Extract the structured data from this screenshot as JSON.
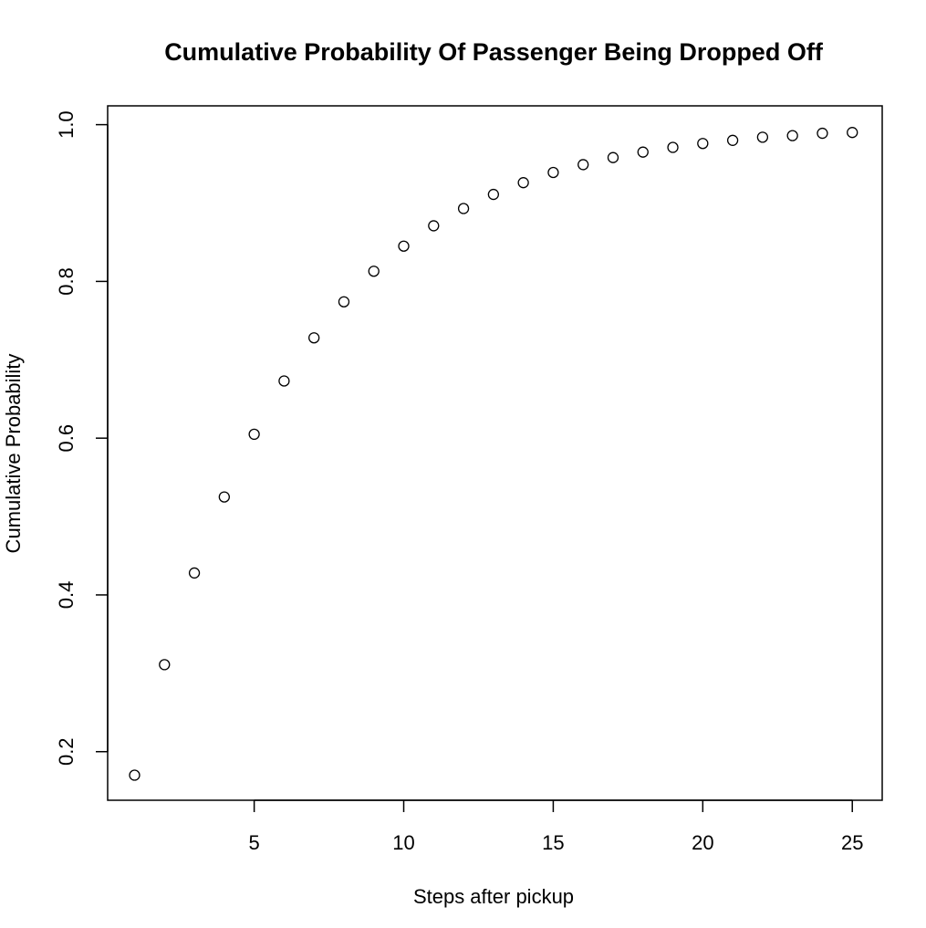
{
  "chart_data": {
    "type": "scatter",
    "title": "Cumulative Probability Of Passenger Being Dropped Off",
    "xlabel": "Steps after pickup",
    "ylabel": "Cumulative Probability",
    "xlim": [
      0.1,
      26.0
    ],
    "ylim": [
      0.138,
      1.024
    ],
    "x_ticks": [
      5,
      10,
      15,
      20,
      25
    ],
    "y_ticks": [
      0.2,
      0.4,
      0.6,
      0.8,
      1.0
    ],
    "x_tick_labels": [
      "5",
      "10",
      "15",
      "20",
      "25"
    ],
    "y_tick_labels": [
      "0.2",
      "0.4",
      "0.6",
      "0.8",
      "1.0"
    ],
    "marker": "open-circle",
    "grid": false,
    "legend": "none",
    "x": [
      1,
      2,
      3,
      4,
      5,
      6,
      7,
      8,
      9,
      10,
      11,
      12,
      13,
      14,
      15,
      16,
      17,
      18,
      19,
      20,
      21,
      22,
      23,
      24,
      25
    ],
    "y": [
      0.17,
      0.311,
      0.428,
      0.525,
      0.605,
      0.673,
      0.728,
      0.774,
      0.813,
      0.845,
      0.871,
      0.893,
      0.911,
      0.926,
      0.939,
      0.949,
      0.958,
      0.965,
      0.971,
      0.976,
      0.98,
      0.984,
      0.986,
      0.989,
      0.99
    ]
  }
}
